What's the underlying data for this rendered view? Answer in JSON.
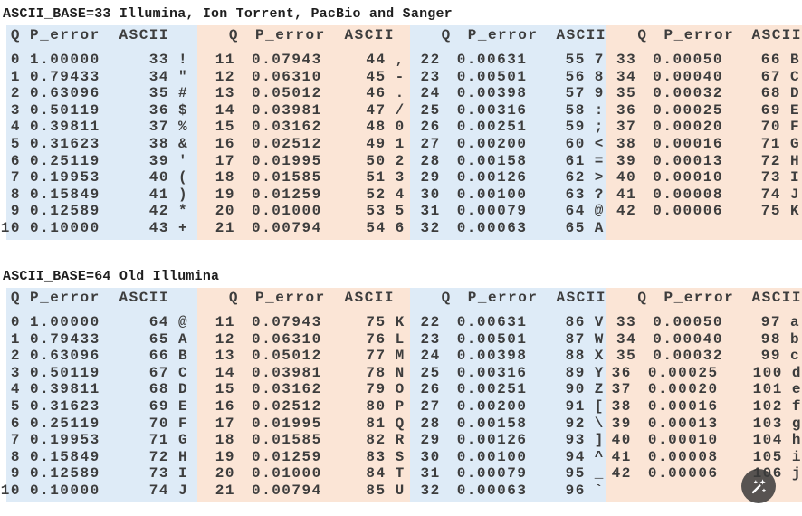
{
  "colors": {
    "group_blue": "#deebf7",
    "group_peach": "#fbe5d6",
    "text": "#3d3d3d",
    "title_text": "#1f1f1f",
    "overlay_button_bg": "#3a3a3a",
    "overlay_icon": "#ffffff"
  },
  "overlay_button": {
    "icon": "magic-wand-icon"
  },
  "tables": [
    {
      "title": "ASCII_BASE=33 Illumina, Ion Torrent, PacBio and Sanger",
      "column_headers": [
        "Q",
        "P_error",
        "ASCII"
      ],
      "groups": [
        {
          "color": "blue",
          "rows": [
            [
              "0",
              "1.00000",
              "33",
              "!"
            ],
            [
              "1",
              "0.79433",
              "34",
              "\""
            ],
            [
              "2",
              "0.63096",
              "35",
              "#"
            ],
            [
              "3",
              "0.50119",
              "36",
              "$"
            ],
            [
              "4",
              "0.39811",
              "37",
              "%"
            ],
            [
              "5",
              "0.31623",
              "38",
              "&"
            ],
            [
              "6",
              "0.25119",
              "39",
              "'"
            ],
            [
              "7",
              "0.19953",
              "40",
              "("
            ],
            [
              "8",
              "0.15849",
              "41",
              ")"
            ],
            [
              "9",
              "0.12589",
              "42",
              "*"
            ],
            [
              "10",
              "0.10000",
              "43",
              "+"
            ]
          ]
        },
        {
          "color": "peach",
          "rows": [
            [
              "11",
              "0.07943",
              "44",
              ","
            ],
            [
              "12",
              "0.06310",
              "45",
              "-"
            ],
            [
              "13",
              "0.05012",
              "46",
              "."
            ],
            [
              "14",
              "0.03981",
              "47",
              "/"
            ],
            [
              "15",
              "0.03162",
              "48",
              "0"
            ],
            [
              "16",
              "0.02512",
              "49",
              "1"
            ],
            [
              "17",
              "0.01995",
              "50",
              "2"
            ],
            [
              "18",
              "0.01585",
              "51",
              "3"
            ],
            [
              "19",
              "0.01259",
              "52",
              "4"
            ],
            [
              "20",
              "0.01000",
              "53",
              "5"
            ],
            [
              "21",
              "0.00794",
              "54",
              "6"
            ]
          ]
        },
        {
          "color": "blue",
          "rows": [
            [
              "22",
              "0.00631",
              "55",
              "7"
            ],
            [
              "23",
              "0.00501",
              "56",
              "8"
            ],
            [
              "24",
              "0.00398",
              "57",
              "9"
            ],
            [
              "25",
              "0.00316",
              "58",
              ":"
            ],
            [
              "26",
              "0.00251",
              "59",
              ";"
            ],
            [
              "27",
              "0.00200",
              "60",
              "<"
            ],
            [
              "28",
              "0.00158",
              "61",
              "="
            ],
            [
              "29",
              "0.00126",
              "62",
              ">"
            ],
            [
              "30",
              "0.00100",
              "63",
              "?"
            ],
            [
              "31",
              "0.00079",
              "64",
              "@"
            ],
            [
              "32",
              "0.00063",
              "65",
              "A"
            ]
          ]
        },
        {
          "color": "peach",
          "rows": [
            [
              "33",
              "0.00050",
              "66",
              "B"
            ],
            [
              "34",
              "0.00040",
              "67",
              "C"
            ],
            [
              "35",
              "0.00032",
              "68",
              "D"
            ],
            [
              "36",
              "0.00025",
              "69",
              "E"
            ],
            [
              "37",
              "0.00020",
              "70",
              "F"
            ],
            [
              "38",
              "0.00016",
              "71",
              "G"
            ],
            [
              "39",
              "0.00013",
              "72",
              "H"
            ],
            [
              "40",
              "0.00010",
              "73",
              "I"
            ],
            [
              "41",
              "0.00008",
              "74",
              "J"
            ],
            [
              "42",
              "0.00006",
              "75",
              "K"
            ]
          ]
        }
      ]
    },
    {
      "title": "ASCII_BASE=64 Old Illumina",
      "column_headers": [
        "Q",
        "P_error",
        "ASCII"
      ],
      "groups": [
        {
          "color": "blue",
          "rows": [
            [
              "0",
              "1.00000",
              "64",
              "@"
            ],
            [
              "1",
              "0.79433",
              "65",
              "A"
            ],
            [
              "2",
              "0.63096",
              "66",
              "B"
            ],
            [
              "3",
              "0.50119",
              "67",
              "C"
            ],
            [
              "4",
              "0.39811",
              "68",
              "D"
            ],
            [
              "5",
              "0.31623",
              "69",
              "E"
            ],
            [
              "6",
              "0.25119",
              "70",
              "F"
            ],
            [
              "7",
              "0.19953",
              "71",
              "G"
            ],
            [
              "8",
              "0.15849",
              "72",
              "H"
            ],
            [
              "9",
              "0.12589",
              "73",
              "I"
            ],
            [
              "10",
              "0.10000",
              "74",
              "J"
            ]
          ]
        },
        {
          "color": "peach",
          "rows": [
            [
              "11",
              "0.07943",
              "75",
              "K"
            ],
            [
              "12",
              "0.06310",
              "76",
              "L"
            ],
            [
              "13",
              "0.05012",
              "77",
              "M"
            ],
            [
              "14",
              "0.03981",
              "78",
              "N"
            ],
            [
              "15",
              "0.03162",
              "79",
              "O"
            ],
            [
              "16",
              "0.02512",
              "80",
              "P"
            ],
            [
              "17",
              "0.01995",
              "81",
              "Q"
            ],
            [
              "18",
              "0.01585",
              "82",
              "R"
            ],
            [
              "19",
              "0.01259",
              "83",
              "S"
            ],
            [
              "20",
              "0.01000",
              "84",
              "T"
            ],
            [
              "21",
              "0.00794",
              "85",
              "U"
            ]
          ]
        },
        {
          "color": "blue",
          "rows": [
            [
              "22",
              "0.00631",
              "86",
              "V"
            ],
            [
              "23",
              "0.00501",
              "87",
              "W"
            ],
            [
              "24",
              "0.00398",
              "88",
              "X"
            ],
            [
              "25",
              "0.00316",
              "89",
              "Y"
            ],
            [
              "26",
              "0.00251",
              "90",
              "Z"
            ],
            [
              "27",
              "0.00200",
              "91",
              "["
            ],
            [
              "28",
              "0.00158",
              "92",
              "\\"
            ],
            [
              "29",
              "0.00126",
              "93",
              "]"
            ],
            [
              "30",
              "0.00100",
              "94",
              "^"
            ],
            [
              "31",
              "0.00079",
              "95",
              "_"
            ],
            [
              "32",
              "0.00063",
              "96",
              "`"
            ]
          ]
        },
        {
          "color": "peach",
          "rows": [
            [
              "33",
              "0.00050",
              "97",
              "a"
            ],
            [
              "34",
              "0.00040",
              "98",
              "b"
            ],
            [
              "35",
              "0.00032",
              "99",
              "c"
            ],
            [
              "36",
              "0.00025",
              "100",
              "d"
            ],
            [
              "37",
              "0.00020",
              "101",
              "e"
            ],
            [
              "38",
              "0.00016",
              "102",
              "f"
            ],
            [
              "39",
              "0.00013",
              "103",
              "g"
            ],
            [
              "40",
              "0.00010",
              "104",
              "h"
            ],
            [
              "41",
              "0.00008",
              "105",
              "i"
            ],
            [
              "42",
              "0.00006",
              "106",
              "j"
            ]
          ]
        }
      ]
    }
  ]
}
